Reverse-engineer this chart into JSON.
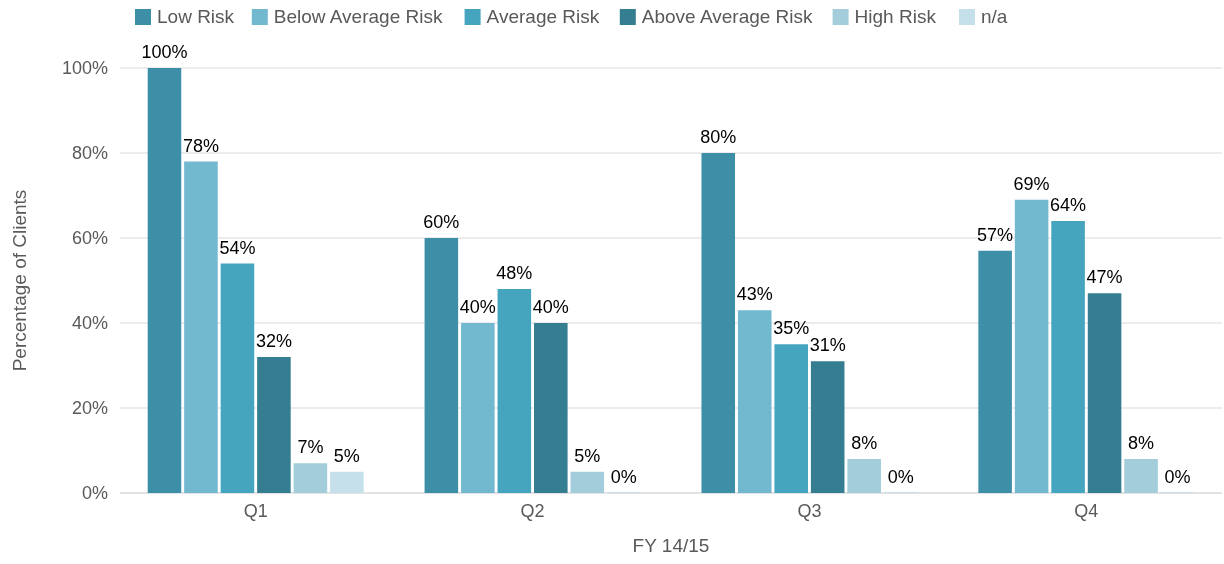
{
  "chart_data": {
    "type": "bar",
    "xlabel": "FY 14/15",
    "ylabel": "Percentage of Clients",
    "categories": [
      "Q1",
      "Q2",
      "Q3",
      "Q4"
    ],
    "series": [
      {
        "name": "Low Risk",
        "color": "#3d8fa8",
        "values": [
          100,
          60,
          80,
          57
        ],
        "value_labels": [
          "100%",
          "60%",
          "80%",
          "57%"
        ]
      },
      {
        "name": "Below Average Risk",
        "color": "#72b8cf",
        "values": [
          78,
          40,
          43,
          69
        ],
        "value_labels": [
          "78%",
          "40%",
          "43%",
          "69%"
        ]
      },
      {
        "name": "Average Risk",
        "color": "#45a5bf",
        "values": [
          54,
          48,
          35,
          64
        ],
        "value_labels": [
          "54%",
          "48%",
          "35%",
          "64%"
        ]
      },
      {
        "name": "Above Average Risk",
        "color": "#357d91",
        "values": [
          32,
          40,
          31,
          47
        ],
        "value_labels": [
          "32%",
          "40%",
          "31%",
          "47%"
        ]
      },
      {
        "name": "High Risk",
        "color": "#a3cddb",
        "values": [
          7,
          5,
          8,
          8
        ],
        "value_labels": [
          "7%",
          "5%",
          "8%",
          "8%"
        ]
      },
      {
        "name": "n/a",
        "color": "#c5e0ea",
        "values": [
          5,
          0,
          0,
          0
        ],
        "value_labels": [
          "5%",
          "0%",
          "0%",
          "0%"
        ]
      }
    ],
    "ylim": [
      0,
      100
    ],
    "yticks": [
      {
        "value": 0,
        "label": "0%"
      },
      {
        "value": 20,
        "label": "20%"
      },
      {
        "value": 40,
        "label": "40%"
      },
      {
        "value": 60,
        "label": "60%"
      },
      {
        "value": 80,
        "label": "80%"
      },
      {
        "value": 100,
        "label": "100%"
      }
    ],
    "grid": "y",
    "legend": "top"
  }
}
